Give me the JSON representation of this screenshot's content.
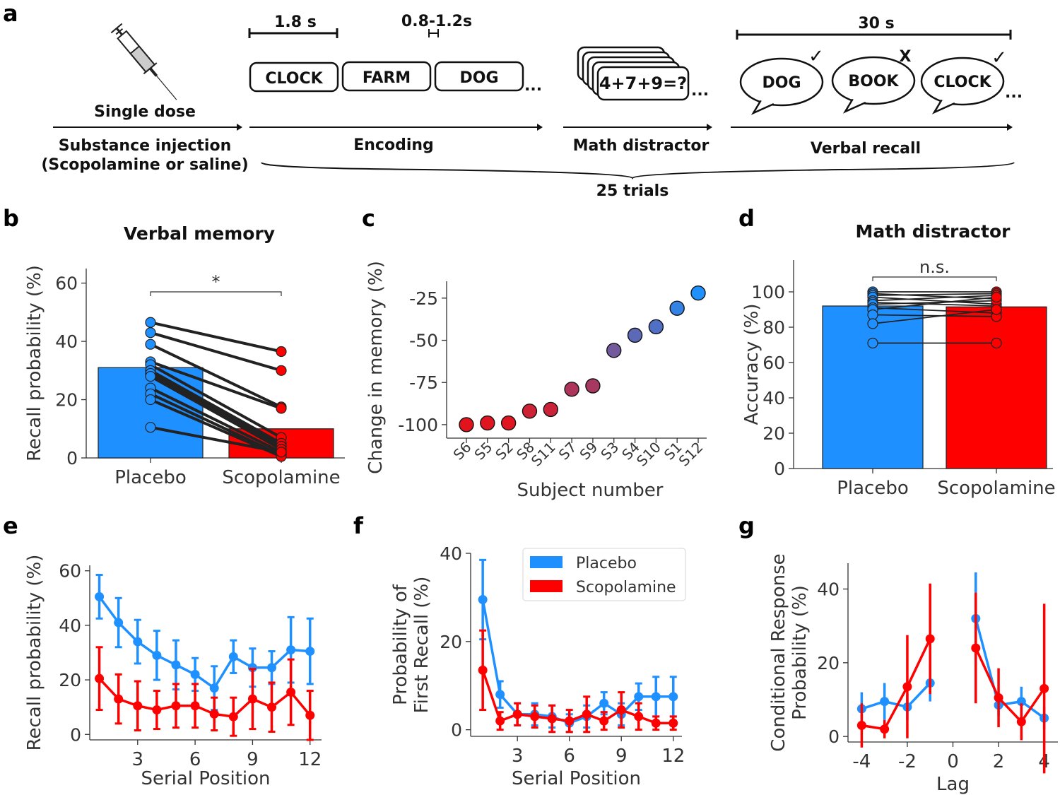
{
  "colors": {
    "placebo": "#1e90ff",
    "scopolamine": "#ff0000",
    "axis": "#333333",
    "paired_line": "#222222"
  },
  "panel_labels": [
    "a",
    "b",
    "c",
    "d",
    "e",
    "f",
    "g"
  ],
  "schematic": {
    "injection_title": "Single dose",
    "injection_label_1": "Substance injection",
    "injection_label_2": "(Scopolamine or saline)",
    "encoding_duration": "1.8 s",
    "isi_duration": "0.8-1.2s",
    "encoding_words": [
      "CLOCK",
      "FARM",
      "DOG"
    ],
    "ellipsis": "...",
    "encoding_label": "Encoding",
    "math_problem": "4+7+9=?",
    "math_label": "Math distractor",
    "recall_duration": "30 s",
    "recall_words": [
      "DOG",
      "BOOK",
      "CLOCK"
    ],
    "recall_marks": [
      "✓",
      "X",
      "✓"
    ],
    "recall_label": "Verbal recall",
    "trials_label": "25 trials"
  },
  "chart_data": [
    {
      "panel": "b",
      "type": "bar",
      "title": "Verbal memory",
      "ylabel": "Recall probability (%)",
      "categories": [
        "Placebo",
        "Scopolamine"
      ],
      "values": [
        31,
        10
      ],
      "ylim": [
        0,
        65
      ],
      "yticks": [
        0,
        20,
        40,
        60
      ],
      "significance": "*",
      "paired": {
        "placebo": [
          46.5,
          43,
          39,
          33,
          32,
          30,
          29,
          28,
          24,
          22,
          20,
          10.5
        ],
        "scopolamine": [
          36.5,
          30,
          17.5,
          17,
          7,
          5,
          4,
          3,
          2,
          1,
          0.5,
          2
        ]
      }
    },
    {
      "panel": "c",
      "type": "scatter",
      "ylabel": "Change in memory (%)",
      "xlabel": "Subject number",
      "categories": [
        "S6",
        "S5",
        "S2",
        "S8",
        "S11",
        "S7",
        "S9",
        "S3",
        "S4",
        "S10",
        "S1",
        "S12"
      ],
      "values": [
        -100,
        -99,
        -99,
        -92,
        -91,
        -79,
        -77,
        -56,
        -47,
        -42,
        -31,
        -22
      ],
      "ylim": [
        -108,
        -15
      ],
      "yticks": [
        -100,
        -75,
        -50,
        -25
      ]
    },
    {
      "panel": "d",
      "type": "bar",
      "title": "Math distractor",
      "ylabel": "Accuracy (%)",
      "categories": [
        "Placebo",
        "Scopolamine"
      ],
      "values": [
        92,
        91.5
      ],
      "ylim": [
        0,
        118
      ],
      "yticks": [
        0,
        20,
        40,
        60,
        80,
        100
      ],
      "significance": "n.s.",
      "paired": {
        "placebo": [
          100,
          99,
          98,
          97,
          95,
          94,
          93,
          91,
          90,
          87,
          82,
          71
        ],
        "scopolamine": [
          100,
          96,
          99,
          93,
          98,
          92,
          95,
          88,
          97,
          86,
          90,
          71
        ]
      }
    },
    {
      "panel": "e",
      "type": "line",
      "xlabel": "Serial Position",
      "ylabel": "Recall probability (%)",
      "x": [
        1,
        2,
        3,
        4,
        5,
        6,
        7,
        8,
        9,
        10,
        11,
        12
      ],
      "xticks": [
        3,
        6,
        9,
        12
      ],
      "xlim": [
        0.5,
        12.6
      ],
      "ylim": [
        -2,
        62
      ],
      "yticks": [
        0,
        20,
        40,
        60
      ],
      "series": [
        {
          "name": "Placebo",
          "values": [
            50.5,
            41,
            34,
            29,
            25.5,
            22,
            17,
            28.5,
            24.5,
            24.5,
            31,
            30.5
          ],
          "err": [
            8,
            9,
            8,
            9,
            9,
            6,
            8,
            6,
            7,
            6,
            12,
            12
          ]
        },
        {
          "name": "Scopolamine",
          "values": [
            20.5,
            13,
            10.5,
            9,
            10.5,
            10.5,
            7.5,
            6.5,
            13,
            10,
            15.5,
            7
          ],
          "err": [
            11.5,
            9,
            9,
            7,
            8,
            8,
            6,
            7,
            11,
            9,
            12,
            9
          ]
        }
      ]
    },
    {
      "panel": "f",
      "type": "line",
      "xlabel": "Serial Position",
      "ylabel": "Probability of First Recall (%)",
      "x": [
        1,
        2,
        3,
        4,
        5,
        6,
        7,
        8,
        9,
        10,
        11,
        12
      ],
      "xticks": [
        3,
        6,
        9,
        12
      ],
      "xlim": [
        0.3,
        12.5
      ],
      "ylim": [
        -1.5,
        40
      ],
      "yticks": [
        0,
        20,
        40
      ],
      "legend": {
        "position": "top-right",
        "entries": [
          "Placebo",
          "Scopolamine"
        ]
      },
      "series": [
        {
          "name": "Placebo",
          "values": [
            29.5,
            8,
            3.5,
            3.5,
            3,
            1.5,
            3,
            6,
            3.5,
            7.5,
            7.5,
            7.5
          ],
          "err": [
            9,
            3,
            2.5,
            2.5,
            2.5,
            2,
            2.5,
            2.5,
            2.5,
            3,
            4.5,
            4.5
          ]
        },
        {
          "name": "Scopolamine",
          "values": [
            13.5,
            2,
            3.5,
            3,
            2.5,
            2,
            3.5,
            2,
            4.5,
            3,
            1.5,
            1.5
          ],
          "err": [
            9,
            2,
            2.5,
            2.5,
            3,
            2.5,
            4,
            2,
            4,
            3,
            1.5,
            1.5
          ]
        }
      ]
    },
    {
      "panel": "g",
      "type": "line",
      "xlabel": "Lag",
      "ylabel": "Conditional Response Probability (%)",
      "x": [
        -4,
        -3,
        -2,
        -1,
        1,
        2,
        3,
        4
      ],
      "xticks": [
        -4,
        -2,
        0,
        2,
        4
      ],
      "xlim": [
        -4.6,
        4.6
      ],
      "ylim": [
        -1.5,
        47
      ],
      "yticks": [
        0,
        20,
        40
      ],
      "series": [
        {
          "name": "Placebo",
          "values": [
            7.5,
            9.5,
            8,
            14.5,
            32,
            8.5,
            9.5,
            5
          ],
          "err": [
            4.5,
            5,
            3.5,
            5,
            12.5,
            3,
            4,
            3
          ]
        },
        {
          "name": "Scopolamine",
          "values": [
            3,
            2,
            13.5,
            26.5,
            24,
            10.5,
            4,
            13
          ],
          "err": [
            6,
            2.5,
            14,
            15,
            15,
            8,
            5,
            23
          ]
        }
      ]
    }
  ]
}
